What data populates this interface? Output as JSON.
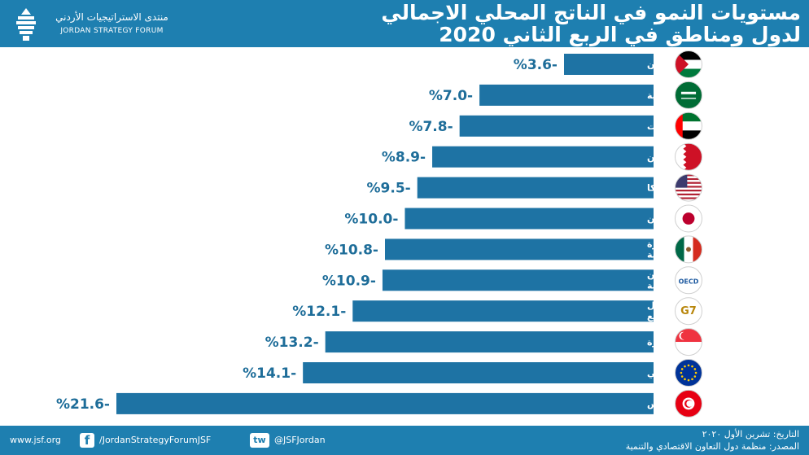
{
  "brand": {
    "name_ar": "منتدى الاستراتيجيات الأردني",
    "name_en": "JORDAN STRATEGY FORUM"
  },
  "header": {
    "title_line1": "مستويات النمو في الناتج المحلي الاجمالي",
    "title_line2": "لدول ومناطق في الربع الثاني 2020"
  },
  "chart_data": {
    "type": "bar",
    "orientation": "horizontal",
    "categories": [
      "الأردن",
      "السعودية",
      "الإمارات",
      "البحرين",
      "أمريكا",
      "اليابان",
      "دول اتفاقية التجارة الحرة لامريكا الشمالية",
      "دول منظمة التعاون الاقتصادي والتنمية",
      "دول مجموعة الدول الصناعية السبع",
      "سنغافورة",
      "دول الاتحاد الأوروبي",
      "تونس"
    ],
    "category_lines": [
      [
        "الأردن"
      ],
      [
        "السعودية"
      ],
      [
        "الإمارات"
      ],
      [
        "البحرين"
      ],
      [
        "أمريكا"
      ],
      [
        "اليابان"
      ],
      [
        "دول اتفاقية التجارة الحرة",
        "لامريكا الشمالية"
      ],
      [
        "دول منظمة التعاون",
        "الاقتصادي والتنمية"
      ],
      [
        "دول مجموعة الدول",
        "الصناعية السبع"
      ],
      [
        "سنغافورة"
      ],
      [
        "دول الاتحاد الأوروبي"
      ],
      [
        "تونس"
      ]
    ],
    "values": [
      -3.6,
      -7.0,
      -7.8,
      -8.9,
      -9.5,
      -10.0,
      -10.8,
      -10.9,
      -12.1,
      -13.2,
      -14.1,
      -21.6
    ],
    "value_labels": [
      "%3.6-",
      "%7.0-",
      "%7.8-",
      "%8.9-",
      "%9.5-",
      "%10.0-",
      "%10.8-",
      "%10.9-",
      "%12.1-",
      "%13.2-",
      "%14.1-",
      "%21.6-"
    ],
    "icons": [
      "jordan-flag-icon",
      "saudi-flag-icon",
      "uae-flag-icon",
      "bahrain-flag-icon",
      "usa-flag-icon",
      "japan-flag-icon",
      "nafta-flags-icon",
      "oecd-logo-icon",
      "g7-logo-icon",
      "singapore-flag-icon",
      "eu-flag-icon",
      "tunisia-flag-icon"
    ],
    "icon_labels": [
      "",
      "",
      "",
      "",
      "",
      "",
      "",
      "OECD",
      "G7",
      "",
      "",
      ""
    ],
    "bar_color": "#1e73a4",
    "value_color": "#1e6d99",
    "xlim": [
      -21.6,
      0
    ]
  },
  "footer": {
    "website": "www.jsf.org",
    "facebook": "/JordanStrategyForumJSF",
    "facebook_icon_text": "f",
    "twitter": "@JSFJordan",
    "twitter_icon_text": "tw",
    "date_line": "التاريخ: تشرين الأول ٢٠٢٠",
    "source_line": "المصدر: منظمة دول التعاون الاقتصادي والتنمية"
  }
}
